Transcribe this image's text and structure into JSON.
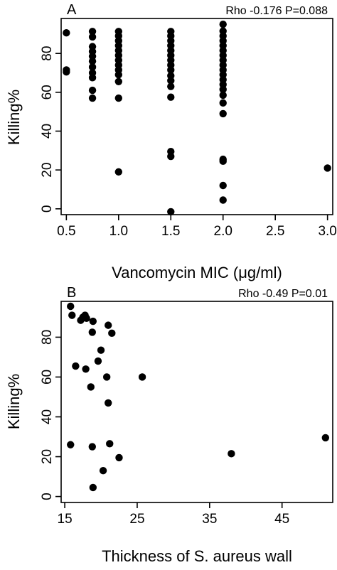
{
  "chart_data": [
    {
      "panel": "A",
      "type": "scatter",
      "annotation": "Rho -0.176 P=0.088",
      "xlabel": "Vancomycin MIC (μg/ml)",
      "ylabel": "Killing%",
      "xlim": [
        0.45,
        3.05
      ],
      "ylim": [
        -3,
        98
      ],
      "xticks": [
        "0.5",
        "1.0",
        "1.5",
        "2.0",
        "2.5",
        "3.0"
      ],
      "yticks": [
        "0",
        "20",
        "40",
        "60",
        "80"
      ],
      "marker_color": "#000000",
      "points": [
        {
          "x": 0.5,
          "y": 90.6
        },
        {
          "x": 0.5,
          "y": 71.5
        },
        {
          "x": 0.5,
          "y": 70.5
        },
        {
          "x": 0.75,
          "y": 91.3
        },
        {
          "x": 0.75,
          "y": 88.5
        },
        {
          "x": 0.75,
          "y": 83.5
        },
        {
          "x": 0.75,
          "y": 81.0
        },
        {
          "x": 0.75,
          "y": 78.5
        },
        {
          "x": 0.75,
          "y": 76.0
        },
        {
          "x": 0.75,
          "y": 73.0
        },
        {
          "x": 0.75,
          "y": 70.0
        },
        {
          "x": 0.75,
          "y": 67.5
        },
        {
          "x": 0.75,
          "y": 61.0
        },
        {
          "x": 0.75,
          "y": 57.0
        },
        {
          "x": 1.0,
          "y": 91.3
        },
        {
          "x": 1.0,
          "y": 89.0
        },
        {
          "x": 1.0,
          "y": 86.5
        },
        {
          "x": 1.0,
          "y": 84.0
        },
        {
          "x": 1.0,
          "y": 81.5
        },
        {
          "x": 1.0,
          "y": 79.0
        },
        {
          "x": 1.0,
          "y": 76.5
        },
        {
          "x": 1.0,
          "y": 74.0
        },
        {
          "x": 1.0,
          "y": 71.5
        },
        {
          "x": 1.0,
          "y": 69.0
        },
        {
          "x": 1.0,
          "y": 65.5
        },
        {
          "x": 1.0,
          "y": 57.0
        },
        {
          "x": 1.0,
          "y": 19.0
        },
        {
          "x": 1.5,
          "y": 91.3
        },
        {
          "x": 1.5,
          "y": 89.0
        },
        {
          "x": 1.5,
          "y": 86.5
        },
        {
          "x": 1.5,
          "y": 84.0
        },
        {
          "x": 1.5,
          "y": 81.5
        },
        {
          "x": 1.5,
          "y": 79.0
        },
        {
          "x": 1.5,
          "y": 76.5
        },
        {
          "x": 1.5,
          "y": 74.0
        },
        {
          "x": 1.5,
          "y": 71.5
        },
        {
          "x": 1.5,
          "y": 68.5
        },
        {
          "x": 1.5,
          "y": 66.0
        },
        {
          "x": 1.5,
          "y": 63.0
        },
        {
          "x": 1.5,
          "y": 57.5
        },
        {
          "x": 1.5,
          "y": 29.5
        },
        {
          "x": 1.5,
          "y": 27.0
        },
        {
          "x": 1.5,
          "y": -1.5
        },
        {
          "x": 2.0,
          "y": 95.0
        },
        {
          "x": 2.0,
          "y": 91.5
        },
        {
          "x": 2.0,
          "y": 89.0
        },
        {
          "x": 2.0,
          "y": 86.5
        },
        {
          "x": 2.0,
          "y": 84.0
        },
        {
          "x": 2.0,
          "y": 81.5
        },
        {
          "x": 2.0,
          "y": 79.0
        },
        {
          "x": 2.0,
          "y": 76.5
        },
        {
          "x": 2.0,
          "y": 74.0
        },
        {
          "x": 2.0,
          "y": 71.5
        },
        {
          "x": 2.0,
          "y": 69.0
        },
        {
          "x": 2.0,
          "y": 66.5
        },
        {
          "x": 2.0,
          "y": 64.0
        },
        {
          "x": 2.0,
          "y": 61.5
        },
        {
          "x": 2.0,
          "y": 58.5
        },
        {
          "x": 2.0,
          "y": 54.5
        },
        {
          "x": 2.0,
          "y": 49.0
        },
        {
          "x": 2.0,
          "y": 25.5
        },
        {
          "x": 2.0,
          "y": 24.5
        },
        {
          "x": 2.0,
          "y": 12.0
        },
        {
          "x": 2.0,
          "y": 4.5
        },
        {
          "x": 3.0,
          "y": 21.0
        }
      ]
    },
    {
      "panel": "B",
      "type": "scatter",
      "annotation": "Rho -0.49 P=0.01",
      "xlabel": "Thickness of S. aureus wall",
      "ylabel": "Killing%",
      "xlim": [
        14.5,
        52
      ],
      "ylim": [
        -3,
        98
      ],
      "xticks": [
        "15",
        "25",
        "35",
        "45"
      ],
      "yticks": [
        "0",
        "20",
        "40",
        "60",
        "80"
      ],
      "marker_color": "#000000",
      "points": [
        {
          "x": 15.8,
          "y": 95.5
        },
        {
          "x": 16.0,
          "y": 91.0
        },
        {
          "x": 17.2,
          "y": 88.5
        },
        {
          "x": 17.5,
          "y": 90.0
        },
        {
          "x": 17.8,
          "y": 91.0
        },
        {
          "x": 18.0,
          "y": 89.5
        },
        {
          "x": 18.9,
          "y": 88.0
        },
        {
          "x": 18.8,
          "y": 82.5
        },
        {
          "x": 21.0,
          "y": 86.0
        },
        {
          "x": 21.5,
          "y": 82.0
        },
        {
          "x": 20.0,
          "y": 73.5
        },
        {
          "x": 19.6,
          "y": 68.0
        },
        {
          "x": 16.5,
          "y": 65.5
        },
        {
          "x": 17.9,
          "y": 64.0
        },
        {
          "x": 20.8,
          "y": 60.0
        },
        {
          "x": 25.7,
          "y": 60.0
        },
        {
          "x": 18.6,
          "y": 55.0
        },
        {
          "x": 21.0,
          "y": 47.0
        },
        {
          "x": 15.8,
          "y": 26.0
        },
        {
          "x": 18.8,
          "y": 25.0
        },
        {
          "x": 21.2,
          "y": 26.5
        },
        {
          "x": 22.5,
          "y": 19.5
        },
        {
          "x": 20.3,
          "y": 13.0
        },
        {
          "x": 18.9,
          "y": 4.5
        },
        {
          "x": 38.0,
          "y": 21.5
        },
        {
          "x": 51.0,
          "y": 29.5
        }
      ]
    }
  ]
}
